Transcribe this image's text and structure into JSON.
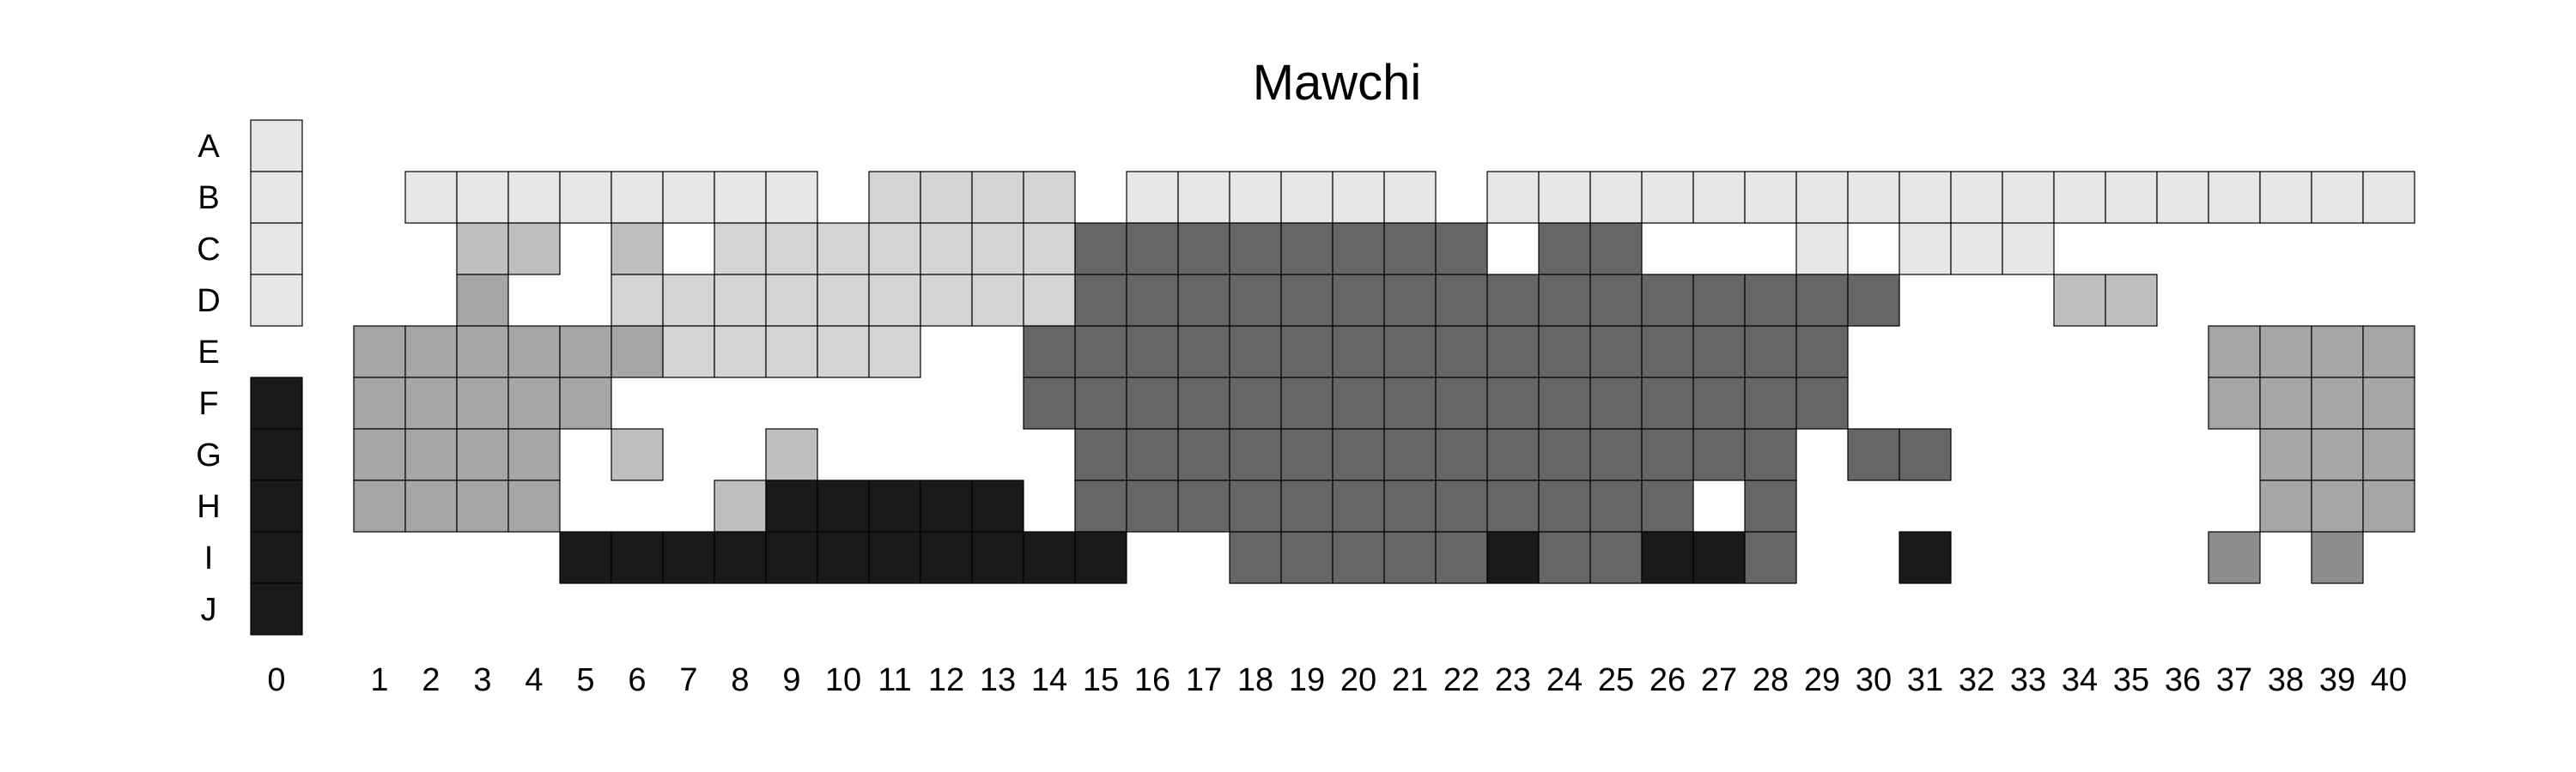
{
  "chart_data": {
    "type": "heatmap",
    "title": "Mawchi",
    "rows": [
      "A",
      "B",
      "C",
      "D",
      "E",
      "F",
      "G",
      "H",
      "I",
      "J"
    ],
    "columns": [
      "0",
      "1",
      "2",
      "3",
      "4",
      "5",
      "6",
      "7",
      "8",
      "9",
      "10",
      "11",
      "12",
      "13",
      "14",
      "15",
      "16",
      "17",
      "18",
      "19",
      "20",
      "21",
      "22",
      "23",
      "24",
      "25",
      "26",
      "27",
      "28",
      "29",
      "30",
      "31",
      "32",
      "33",
      "34",
      "35",
      "36",
      "37",
      "38",
      "39",
      "40"
    ],
    "colors": {
      "a": "#e6e6e6",
      "b": "#d4d4d4",
      "c": "#bfbfbf",
      "d": "#a6a6a6",
      "e": "#8c8c8c",
      "f": "#666666",
      "g": "#1a1a1a"
    },
    "cell_border_color": "#000000",
    "grid": [
      "a........................................",
      "a.aaaaaaaa.bbbb.aaaaaa.aaaaaaaaaaaaaaaaaa",
      "a..cc.c.bbbbbbbffffffff.ff...a.aaa.......",
      "a..d..bbbbbbbbbffffffffffffffff...cc.....",
      ".ddddddbbbbb..ffffffffffffffff.......dddd",
      "gddddd........ffffffffffffffff.......dddd",
      "gdddd.c..c.....ffffffffffffff.ff......ddd",
      "gdddd...cggggg.ffffffffffff.f.........ddd",
      "g....ggggggggggg..fffffgffggf..g.....e.e.",
      "g........................................"
    ]
  }
}
